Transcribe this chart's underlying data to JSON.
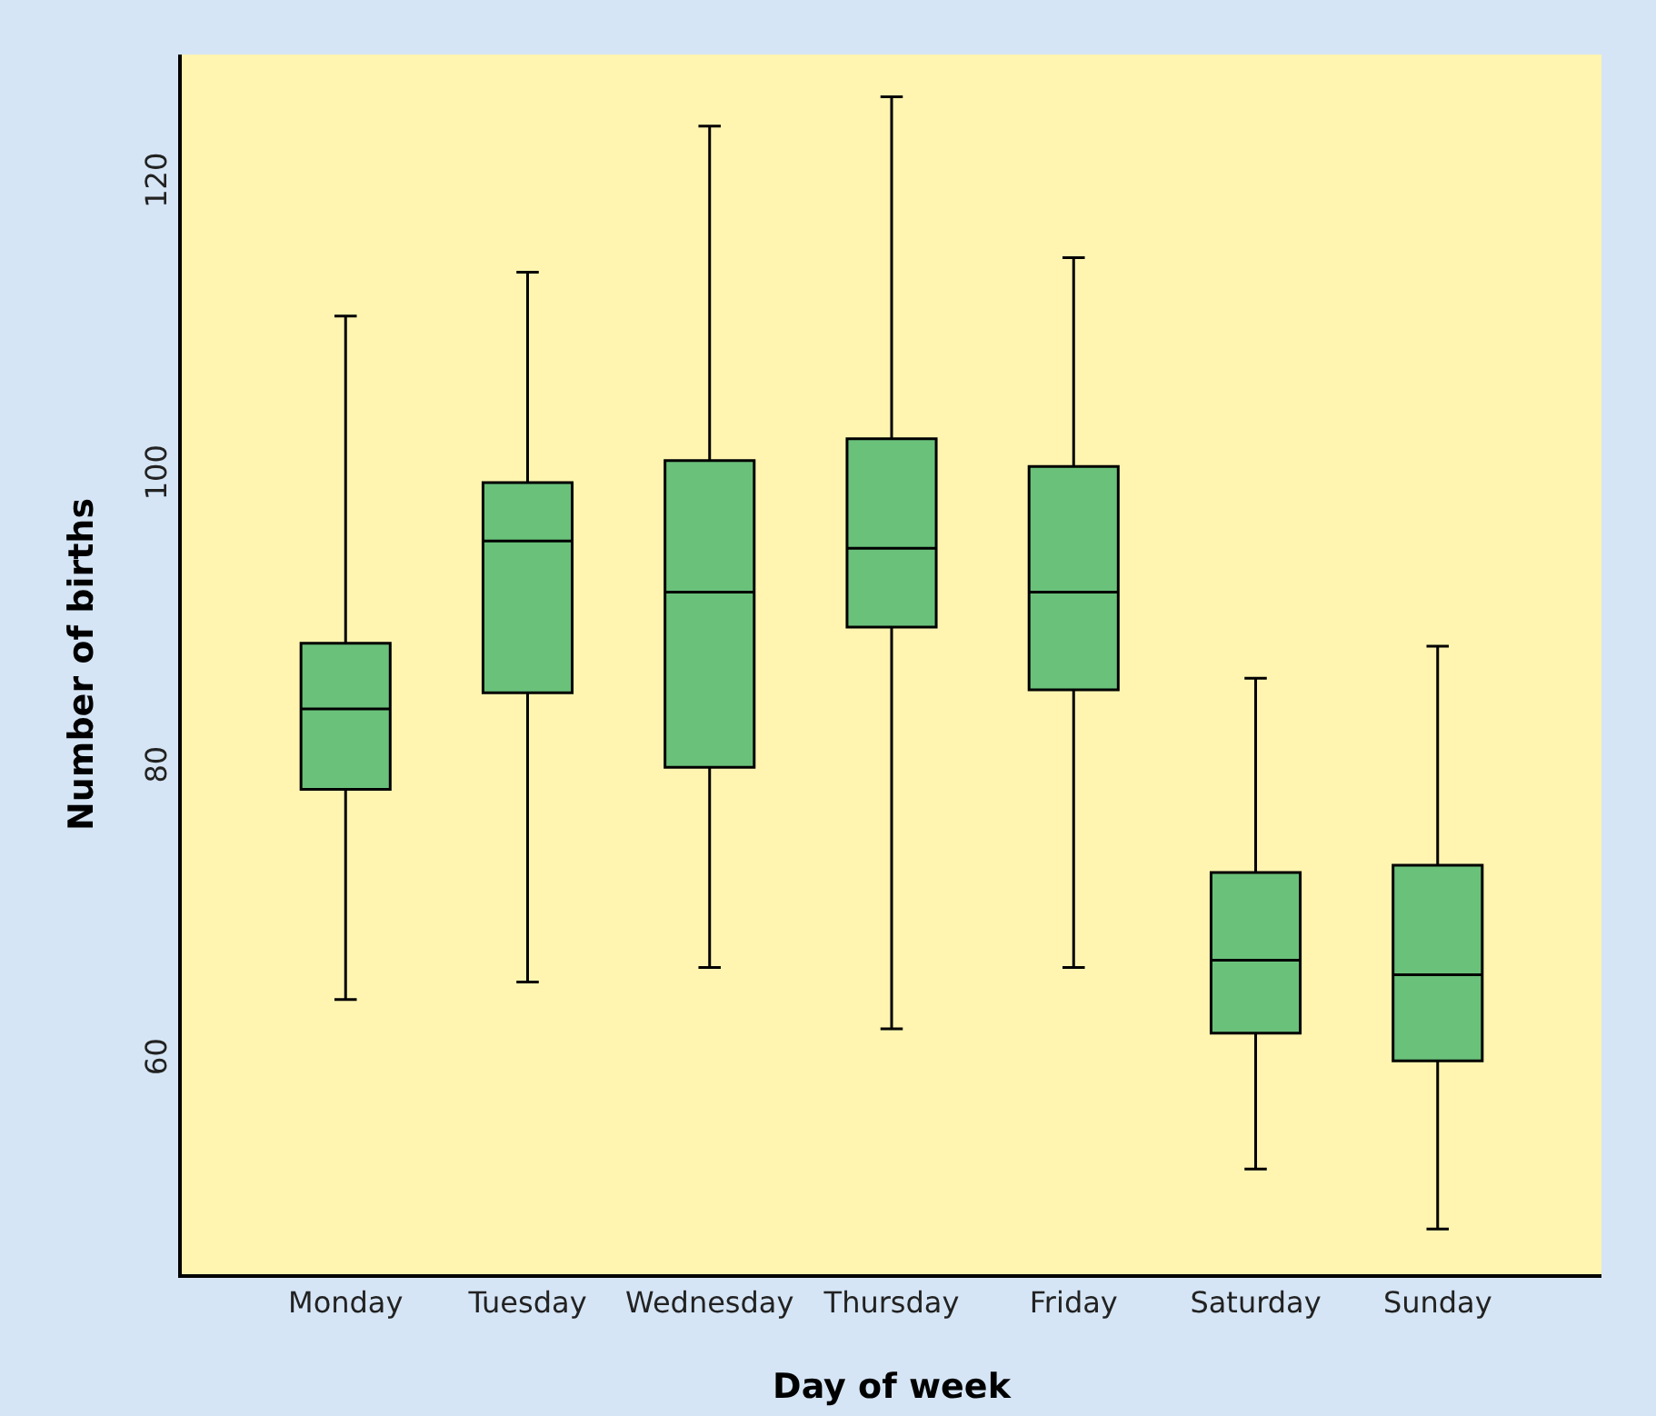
{
  "chart_data": {
    "type": "box",
    "xlabel": "Day of week",
    "ylabel": "Number of births",
    "categories": [
      "Monday",
      "Tuesday",
      "Wednesday",
      "Thursday",
      "Friday",
      "Saturday",
      "Sunday"
    ],
    "boxes": [
      {
        "low": 64.2,
        "q1": 78.6,
        "median": 84.1,
        "q3": 88.6,
        "high": 111
      },
      {
        "low": 65.4,
        "q1": 85.2,
        "median": 95.6,
        "q3": 99.6,
        "high": 114
      },
      {
        "low": 66.4,
        "q1": 80.1,
        "median": 92.1,
        "q3": 101.1,
        "high": 124
      },
      {
        "low": 62.2,
        "q1": 89.7,
        "median": 95.1,
        "q3": 102.6,
        "high": 126
      },
      {
        "low": 66.4,
        "q1": 85.4,
        "median": 92.1,
        "q3": 100.7,
        "high": 115
      },
      {
        "low": 52.6,
        "q1": 61.9,
        "median": 66.9,
        "q3": 72.9,
        "high": 86.2
      },
      {
        "low": 48.5,
        "q1": 60,
        "median": 65.9,
        "q3": 73.4,
        "high": 88.4
      }
    ],
    "color": "#6ac17a",
    "ylim": [
      45.4,
      128.9
    ],
    "yticks": [
      60,
      80,
      100,
      120
    ],
    "grid": false
  }
}
